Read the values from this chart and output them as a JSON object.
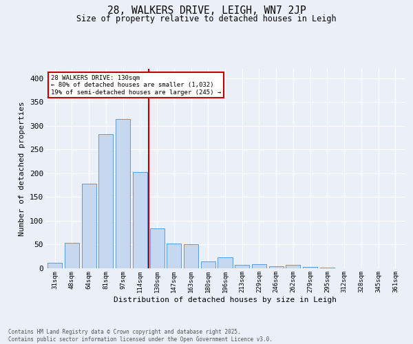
{
  "title1": "28, WALKERS DRIVE, LEIGH, WN7 2JP",
  "title2": "Size of property relative to detached houses in Leigh",
  "xlabel": "Distribution of detached houses by size in Leigh",
  "ylabel": "Number of detached properties",
  "bar_labels": [
    "31sqm",
    "48sqm",
    "64sqm",
    "81sqm",
    "97sqm",
    "114sqm",
    "130sqm",
    "147sqm",
    "163sqm",
    "180sqm",
    "196sqm",
    "213sqm",
    "229sqm",
    "246sqm",
    "262sqm",
    "279sqm",
    "295sqm",
    "312sqm",
    "328sqm",
    "345sqm",
    "361sqm"
  ],
  "bar_heights": [
    11,
    54,
    178,
    283,
    315,
    203,
    84,
    52,
    50,
    15,
    23,
    7,
    8,
    4,
    7,
    3,
    2,
    0,
    0,
    0,
    0
  ],
  "bar_color": "#c5d8f0",
  "bar_edgecolor": "#5b9bd5",
  "vline_color": "#c00000",
  "vline_x_index": 6,
  "annotation_line1": "28 WALKERS DRIVE: 130sqm",
  "annotation_line2": "← 80% of detached houses are smaller (1,032)",
  "annotation_line3": "19% of semi-detached houses are larger (245) →",
  "annotation_box_color": "#c00000",
  "background_color": "#eaeff8",
  "footer1": "Contains HM Land Registry data © Crown copyright and database right 2025.",
  "footer2": "Contains public sector information licensed under the Open Government Licence v3.0.",
  "ylim": [
    0,
    420
  ],
  "yticks": [
    0,
    50,
    100,
    150,
    200,
    250,
    300,
    350,
    400
  ]
}
